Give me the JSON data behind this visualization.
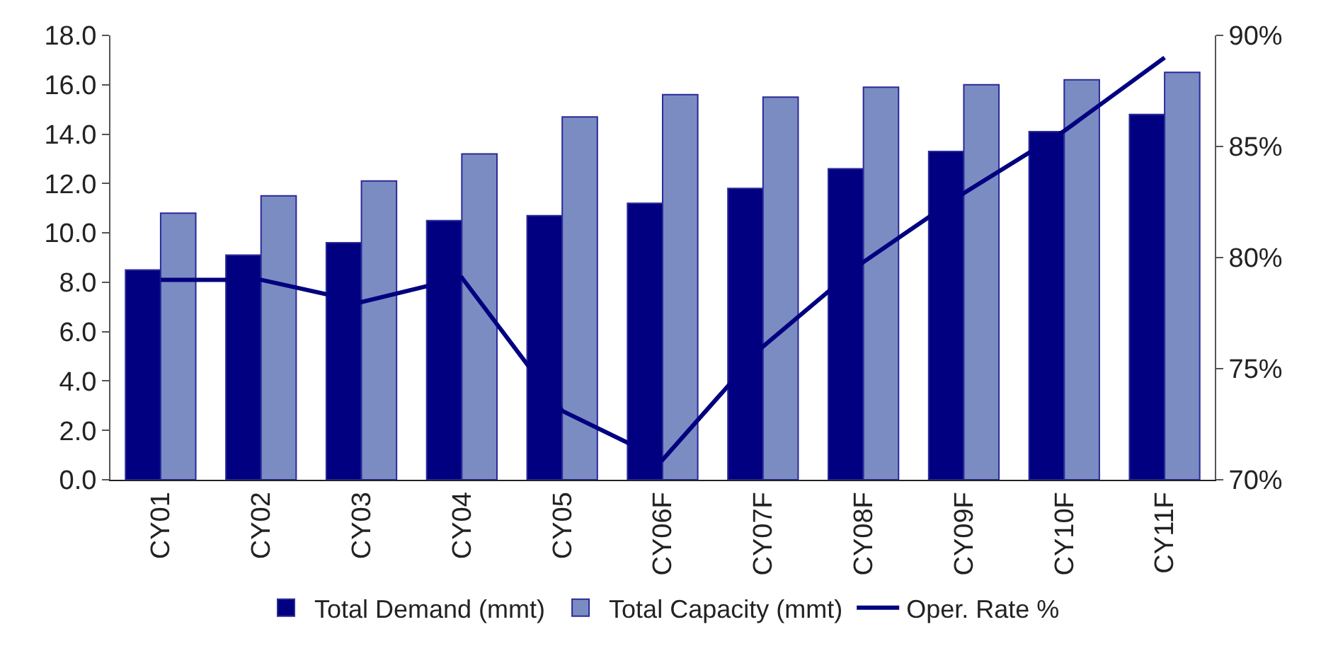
{
  "chart_data": {
    "type": "bar",
    "categories": [
      "CY01",
      "CY02",
      "CY03",
      "CY04",
      "CY05",
      "CY06F",
      "CY07F",
      "CY08F",
      "CY09F",
      "CY10F",
      "CY11F"
    ],
    "series": [
      {
        "name": "Total Demand (mmt)",
        "color": "#000080",
        "values": [
          8.5,
          9.1,
          9.6,
          10.5,
          10.7,
          11.2,
          11.8,
          12.6,
          13.3,
          14.1,
          14.8
        ]
      },
      {
        "name": "Total Capacity (mmt)",
        "color": "#7b8cc2",
        "values": [
          10.8,
          11.5,
          12.1,
          13.2,
          14.7,
          15.6,
          15.5,
          15.9,
          16.0,
          16.2,
          16.5
        ]
      },
      {
        "name": "Oper. Rate %",
        "type": "line",
        "axis": "y2",
        "color": "#000080",
        "values": [
          79.0,
          79.0,
          78.0,
          79.1,
          73.1,
          70.9,
          76.0,
          79.8,
          82.9,
          85.7,
          89.0
        ]
      }
    ],
    "ylim": [
      0,
      18
    ],
    "yticks": [
      {
        "value": 0,
        "label": "0.0"
      },
      {
        "value": 2,
        "label": "2.0"
      },
      {
        "value": 4,
        "label": "4.0"
      },
      {
        "value": 6,
        "label": "6.0"
      },
      {
        "value": 8,
        "label": "8.0"
      },
      {
        "value": 10,
        "label": "10.0"
      },
      {
        "value": 12,
        "label": "12.0"
      },
      {
        "value": 14,
        "label": "14.0"
      },
      {
        "value": 16,
        "label": "16.0"
      },
      {
        "value": 18,
        "label": "18.0"
      }
    ],
    "y2lim": [
      70,
      90
    ],
    "y2ticks": [
      {
        "value": 70,
        "label": "70%"
      },
      {
        "value": 75,
        "label": "75%"
      },
      {
        "value": 80,
        "label": "80%"
      },
      {
        "value": 85,
        "label": "85%"
      },
      {
        "value": 90,
        "label": "90%"
      }
    ],
    "legend": "bottom",
    "marker": "none",
    "line_style": "solid"
  }
}
